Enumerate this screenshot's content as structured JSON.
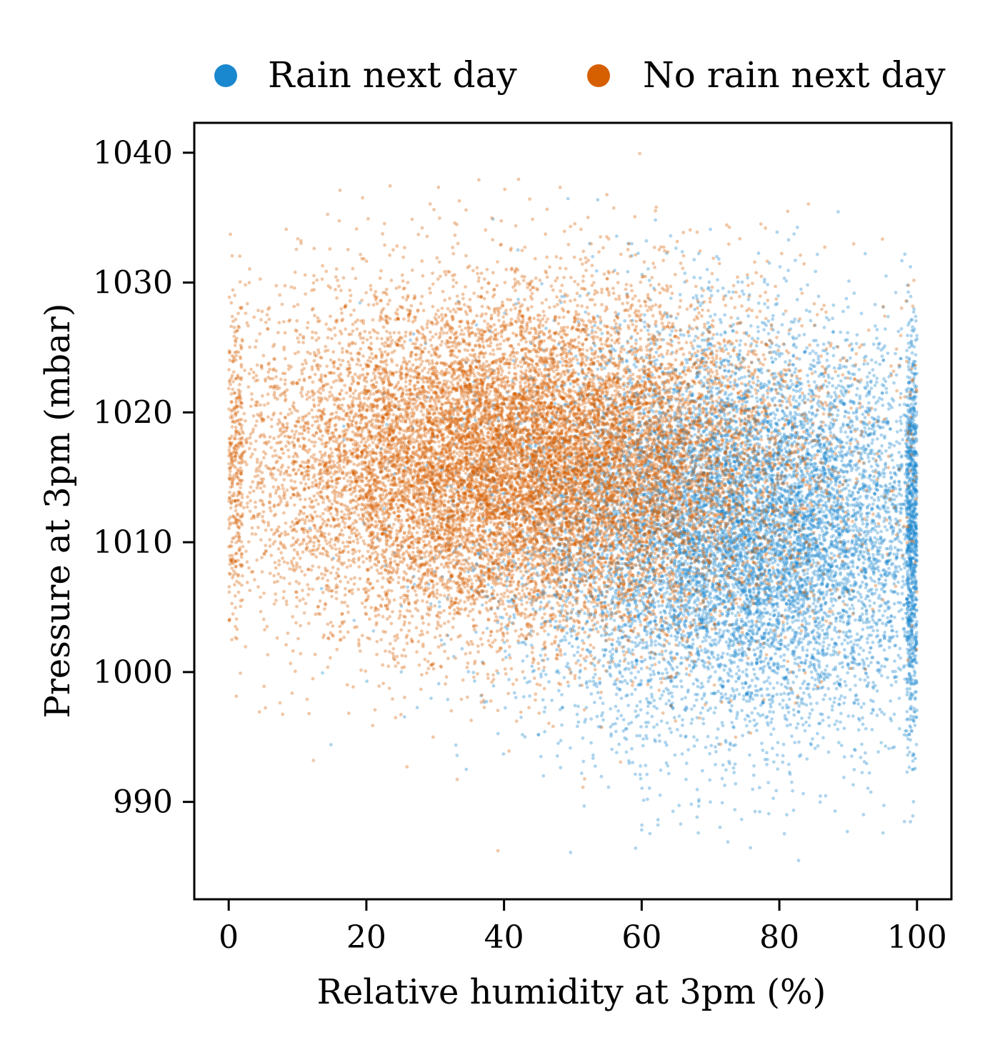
{
  "chart_data": {
    "type": "scatter",
    "title": "",
    "xlabel": "Relative humidity at 3pm (%)",
    "ylabel": "Pressure at 3pm (mbar)",
    "xlim": [
      -5,
      105
    ],
    "ylim": [
      982.5,
      1042.3
    ],
    "x_ticks": [
      0,
      20,
      40,
      60,
      80,
      100
    ],
    "x_tick_labels": [
      "0",
      "20",
      "40",
      "60",
      "80",
      "100"
    ],
    "y_ticks": [
      990,
      1000,
      1010,
      1020,
      1030,
      1040
    ],
    "y_tick_labels": [
      "990",
      "1000",
      "1010",
      "1020",
      "1030",
      "1040"
    ],
    "grid": false,
    "legend_position": "top",
    "series": [
      {
        "name": "Rain next day",
        "color": "#1a88ce",
        "marker": "dot",
        "distribution": {
          "x_mean": 75,
          "x_sd": 17,
          "x_range": [
            0,
            100
          ],
          "y_mean": 1011,
          "y_sd": 7.5,
          "y_range": [
            985,
            1037
          ]
        }
      },
      {
        "name": "No rain next day",
        "color": "#d65f00",
        "marker": "dot",
        "distribution": {
          "x_mean": 42,
          "x_sd": 20,
          "x_range": [
            0,
            100
          ],
          "y_mean": 1016,
          "y_sd": 6.5,
          "y_range": [
            985,
            1040
          ]
        }
      }
    ]
  }
}
